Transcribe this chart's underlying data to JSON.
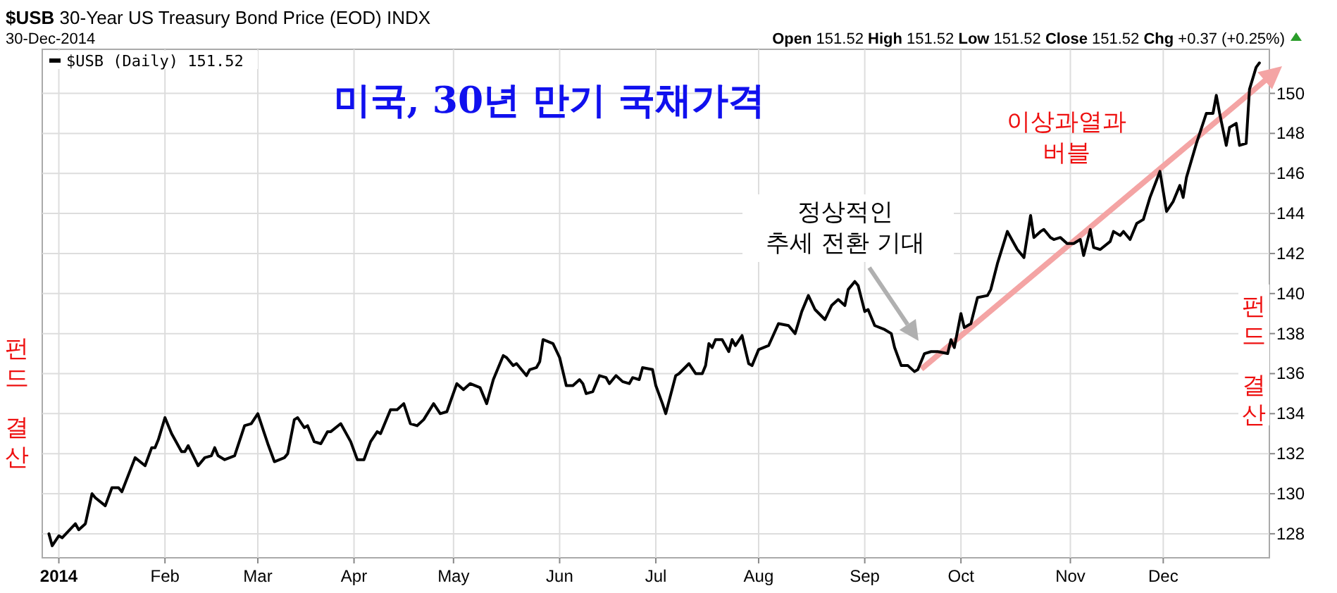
{
  "chart_data": {
    "type": "line",
    "title": "**$USB** 30-Year US Treasury Bond Price (EOD) INDX",
    "subtitle": "30-Dec-2014",
    "annotations": [
      "**Open** 151.52 **High** 151.52 **Low** 151.52 **Close** 151.52 **Chg** +0.37 (+0.25%)",
      "미국, 30년 만기 국채가격",
      "정상적인\n추세 전환 기대",
      "이상과열과\n버블",
      "펀드\n결산",
      "펀드\n결산"
    ],
    "xlim": [
      "2013-12-28",
      "2015-01-02"
    ],
    "xticks": [
      {
        "value": "2014-01-02",
        "label": "2014"
      },
      {
        "value": "2014-02-03",
        "label": "Feb"
      },
      {
        "value": "2014-03-03",
        "label": "Mar"
      },
      {
        "value": "2014-04-01",
        "label": "Apr"
      },
      {
        "value": "2014-05-01",
        "label": "May"
      },
      {
        "value": "2014-06-02",
        "label": "Jun"
      },
      {
        "value": "2014-07-01",
        "label": "Jul"
      },
      {
        "value": "2014-08-01",
        "label": "Aug"
      },
      {
        "value": "2014-09-02",
        "label": "Sep"
      },
      {
        "value": "2014-10-01",
        "label": "Oct"
      },
      {
        "value": "2014-11-03",
        "label": "Nov"
      },
      {
        "value": "2014-12-01",
        "label": "Dec"
      }
    ],
    "ylim": [
      126.8,
      152.2
    ],
    "yticks": [
      128,
      130,
      132,
      134,
      136,
      138,
      140,
      142,
      144,
      146,
      148,
      150
    ],
    "grid": true,
    "legend": "top left",
    "series": [
      {
        "name": "$USB (Daily) 151.52",
        "color": "#000000",
        "x": [
          "2013-12-30",
          "2013-12-31",
          "2014-01-02",
          "2014-01-03",
          "2014-01-07",
          "2014-01-08",
          "2014-01-10",
          "2014-01-12",
          "2014-01-13",
          "2014-01-16",
          "2014-01-18",
          "2014-01-20",
          "2014-01-21",
          "2014-01-25",
          "2014-01-28",
          "2014-01-30",
          "2014-01-31",
          "2014-02-01",
          "2014-02-03",
          "2014-02-05",
          "2014-02-08",
          "2014-02-09",
          "2014-02-10",
          "2014-02-13",
          "2014-02-15",
          "2014-02-17",
          "2014-02-18",
          "2014-02-19",
          "2014-02-21",
          "2014-02-24",
          "2014-02-27",
          "2014-03-01",
          "2014-03-03",
          "2014-03-05",
          "2014-03-06",
          "2014-03-08",
          "2014-03-11",
          "2014-03-12",
          "2014-03-14",
          "2014-03-15",
          "2014-03-17",
          "2014-03-18",
          "2014-03-20",
          "2014-03-22",
          "2014-03-24",
          "2014-03-25",
          "2014-03-28",
          "2014-03-31",
          "2014-04-02",
          "2014-04-04",
          "2014-04-06",
          "2014-04-08",
          "2014-04-09",
          "2014-04-12",
          "2014-04-14",
          "2014-04-16",
          "2014-04-18",
          "2014-04-20",
          "2014-04-22",
          "2014-04-25",
          "2014-04-27",
          "2014-04-29",
          "2014-05-02",
          "2014-05-04",
          "2014-05-06",
          "2014-05-09",
          "2014-05-11",
          "2014-05-13",
          "2014-05-16",
          "2014-05-17",
          "2014-05-19",
          "2014-05-20",
          "2014-05-23",
          "2014-05-24",
          "2014-05-26",
          "2014-05-27",
          "2014-05-28",
          "2014-05-31",
          "2014-06-02",
          "2014-06-04",
          "2014-06-06",
          "2014-06-08",
          "2014-06-09",
          "2014-06-10",
          "2014-06-12",
          "2014-06-14",
          "2014-06-16",
          "2014-06-17",
          "2014-06-19",
          "2014-06-21",
          "2014-06-23",
          "2014-06-24",
          "2014-06-26",
          "2014-06-27",
          "2014-06-30",
          "2014-07-01",
          "2014-07-03",
          "2014-07-04",
          "2014-07-07",
          "2014-07-08",
          "2014-07-11",
          "2014-07-13",
          "2014-07-15",
          "2014-07-16",
          "2014-07-17",
          "2014-07-18",
          "2014-07-19",
          "2014-07-21",
          "2014-07-23",
          "2014-07-24",
          "2014-07-25",
          "2014-07-27",
          "2014-07-29",
          "2014-07-30",
          "2014-08-01",
          "2014-08-04",
          "2014-08-07",
          "2014-08-10",
          "2014-08-12",
          "2014-08-14",
          "2014-08-16",
          "2014-08-18",
          "2014-08-21",
          "2014-08-23",
          "2014-08-25",
          "2014-08-27",
          "2014-08-28",
          "2014-08-30",
          "2014-08-31",
          "2014-09-02",
          "2014-09-03",
          "2014-09-05",
          "2014-09-08",
          "2014-09-10",
          "2014-09-11",
          "2014-09-13",
          "2014-09-15",
          "2014-09-17",
          "2014-09-18",
          "2014-09-20",
          "2014-09-22",
          "2014-09-24",
          "2014-09-27",
          "2014-09-28",
          "2014-09-29",
          "2014-10-01",
          "2014-10-02",
          "2014-10-04",
          "2014-10-06",
          "2014-10-09",
          "2014-10-10",
          "2014-10-12",
          "2014-10-15",
          "2014-10-18",
          "2014-10-20",
          "2014-10-22",
          "2014-10-23",
          "2014-10-25",
          "2014-10-26",
          "2014-10-28",
          "2014-10-29",
          "2014-10-31",
          "2014-11-02",
          "2014-11-04",
          "2014-11-06",
          "2014-11-07",
          "2014-11-09",
          "2014-11-10",
          "2014-11-12",
          "2014-11-15",
          "2014-11-16",
          "2014-11-18",
          "2014-11-19",
          "2014-11-21",
          "2014-11-23",
          "2014-11-25",
          "2014-11-27",
          "2014-11-30",
          "2014-12-02",
          "2014-12-04",
          "2014-12-06",
          "2014-12-07",
          "2014-12-08",
          "2014-12-11",
          "2014-12-14",
          "2014-12-16",
          "2014-12-17",
          "2014-12-18",
          "2014-12-20",
          "2014-12-21",
          "2014-12-23",
          "2014-12-24",
          "2014-12-26",
          "2014-12-27",
          "2014-12-29",
          "2014-12-30"
        ],
        "values": [
          128.0,
          127.4,
          127.9,
          127.8,
          128.5,
          128.2,
          128.5,
          130.0,
          129.8,
          129.4,
          130.3,
          130.3,
          130.1,
          131.8,
          131.4,
          132.3,
          132.3,
          132.7,
          133.8,
          133.0,
          132.1,
          132.1,
          132.4,
          131.4,
          131.8,
          131.9,
          132.3,
          131.9,
          131.7,
          131.9,
          133.4,
          133.5,
          134.0,
          133.0,
          132.5,
          131.6,
          131.8,
          132.0,
          133.7,
          133.8,
          133.3,
          133.4,
          132.6,
          132.5,
          133.1,
          133.1,
          133.5,
          132.6,
          131.7,
          131.7,
          132.6,
          133.1,
          133.0,
          134.2,
          134.2,
          134.5,
          133.5,
          133.4,
          133.7,
          134.5,
          134.0,
          134.1,
          135.5,
          135.2,
          135.5,
          135.3,
          134.5,
          135.7,
          136.9,
          136.8,
          136.4,
          136.5,
          135.9,
          136.2,
          136.3,
          136.6,
          137.7,
          137.5,
          136.8,
          135.4,
          135.4,
          135.7,
          135.5,
          135.0,
          135.1,
          135.9,
          135.8,
          135.5,
          135.9,
          135.6,
          135.5,
          135.8,
          135.7,
          136.3,
          136.2,
          135.4,
          134.5,
          134.0,
          135.9,
          136.0,
          136.5,
          136.0,
          136.0,
          136.4,
          137.5,
          137.3,
          137.7,
          137.7,
          137.1,
          137.7,
          137.4,
          137.9,
          136.5,
          136.4,
          137.2,
          137.4,
          138.5,
          138.4,
          138.0,
          139.1,
          139.9,
          139.2,
          138.7,
          139.4,
          139.7,
          139.4,
          140.2,
          140.6,
          140.4,
          139.1,
          139.2,
          138.4,
          138.2,
          138.0,
          137.3,
          136.4,
          136.4,
          136.1,
          136.2,
          137.0,
          137.1,
          137.1,
          137.0,
          137.7,
          137.3,
          139.0,
          138.3,
          138.5,
          139.8,
          139.9,
          140.2,
          141.5,
          143.1,
          142.2,
          141.8,
          143.9,
          142.8,
          143.1,
          143.2,
          142.8,
          142.7,
          142.8,
          142.5,
          142.5,
          142.7,
          141.9,
          143.2,
          142.3,
          142.2,
          142.6,
          143.1,
          142.9,
          143.1,
          142.7,
          143.5,
          143.7,
          144.8,
          146.1,
          144.1,
          144.6,
          145.4,
          144.8,
          145.8,
          147.5,
          149.0,
          149.0,
          149.9,
          149.0,
          147.4,
          148.3,
          148.5,
          147.4,
          147.5,
          150.2,
          151.3,
          151.52
        ]
      }
    ]
  }
}
